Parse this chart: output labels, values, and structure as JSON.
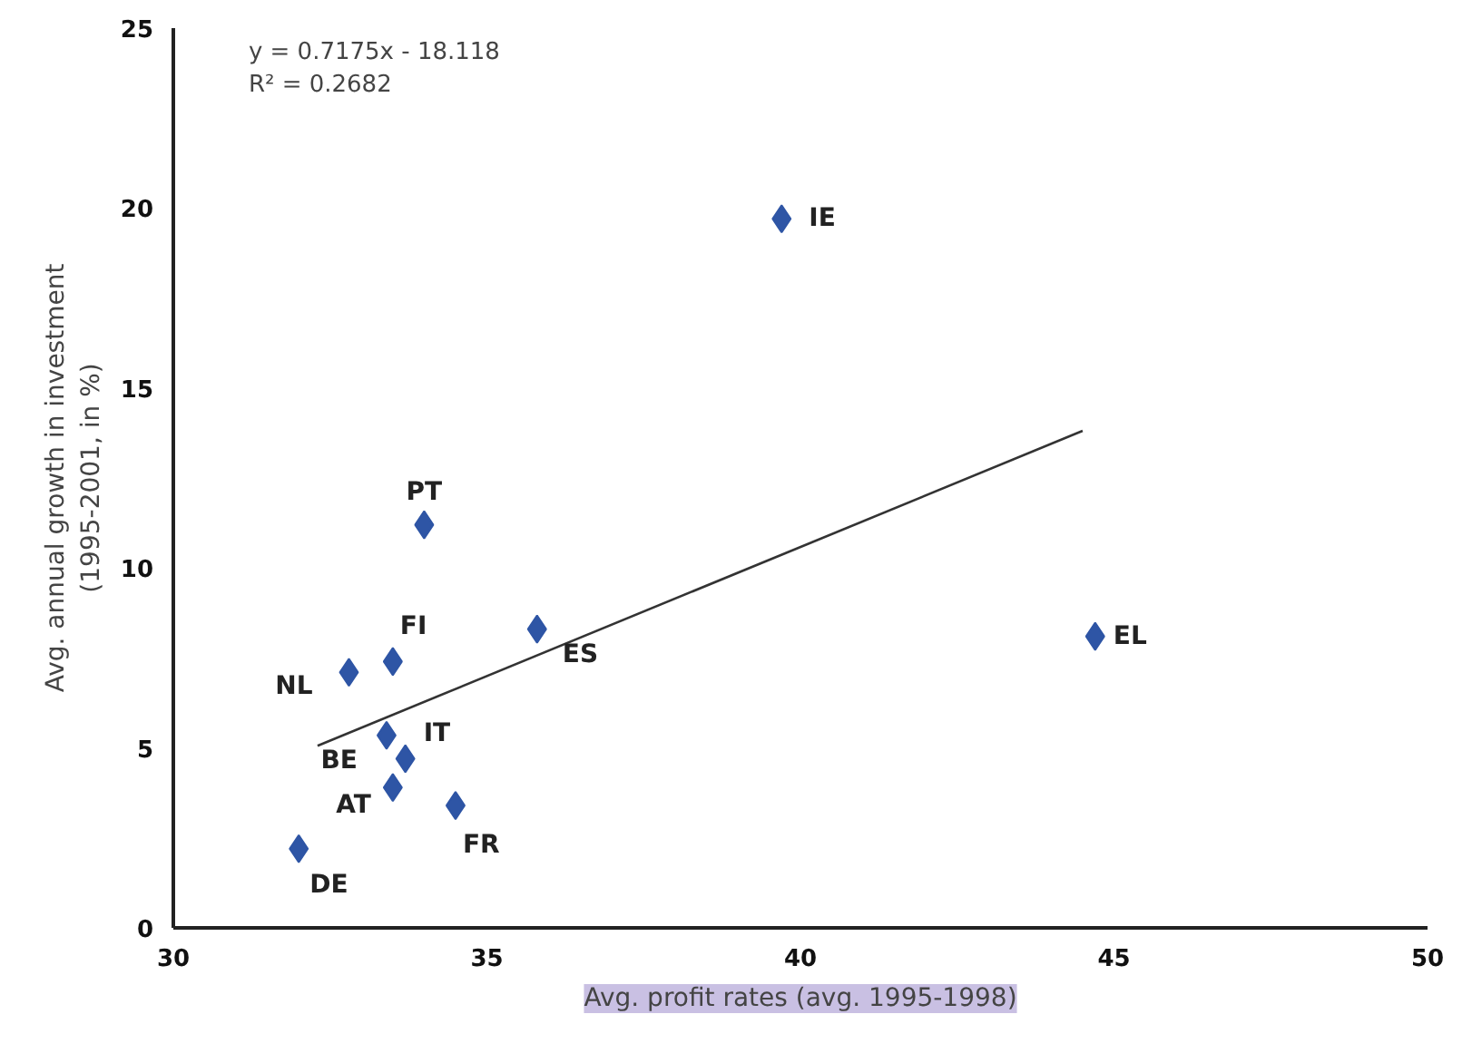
{
  "chart_data": {
    "type": "scatter",
    "xlabel": "Avg. profit rates (avg. 1995-1998)",
    "ylabel": "Avg. annual growth in investment\n(1995-2001, in %)",
    "xlim": [
      30,
      50
    ],
    "ylim": [
      0,
      25
    ],
    "xticks": [
      30,
      35,
      40,
      45,
      50
    ],
    "yticks": [
      0,
      5,
      10,
      15,
      20,
      25
    ],
    "grid": false,
    "marker": "diamond",
    "series": [
      {
        "color": "#2e55a5",
        "x": [
          39.7,
          34.0,
          33.5,
          32.8,
          35.8,
          44.7,
          33.4,
          33.7,
          33.5,
          34.5,
          32.0
        ],
        "values": [
          19.7,
          11.2,
          7.4,
          7.1,
          8.3,
          8.1,
          5.35,
          4.7,
          3.9,
          3.4,
          2.2
        ]
      },
      {
        "type": "line",
        "marker": "none",
        "color": "#333333",
        "x": [
          32.3,
          44.5
        ],
        "values": [
          5.06,
          13.81
        ]
      }
    ],
    "annotations": [
      "y = 0.7175x - 18.118\nR² = 0.2682",
      {
        "text": "IE",
        "x": 39.7,
        "y": 19.7
      },
      {
        "text": "PT",
        "x": 34.0,
        "y": 11.2
      },
      {
        "text": "FI",
        "x": 33.5,
        "y": 7.4
      },
      {
        "text": "NL",
        "x": 32.8,
        "y": 7.1
      },
      {
        "text": "ES",
        "x": 35.8,
        "y": 8.3
      },
      {
        "text": "EL",
        "x": 44.7,
        "y": 8.1
      },
      {
        "text": "BE",
        "x": 33.4,
        "y": 5.35
      },
      {
        "text": "IT",
        "x": 33.7,
        "y": 4.7
      },
      {
        "text": "AT",
        "x": 33.5,
        "y": 3.9
      },
      {
        "text": "FR",
        "x": 34.5,
        "y": 3.4
      },
      {
        "text": "DE",
        "x": 32.0,
        "y": 2.2
      }
    ]
  }
}
